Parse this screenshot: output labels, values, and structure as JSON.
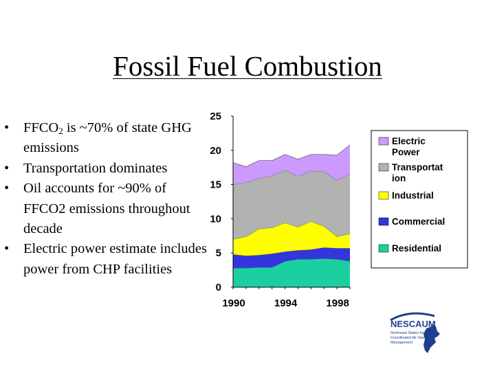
{
  "slide": {
    "title": "Fossil Fuel Combustion",
    "bullet_char": "•",
    "bullets": [
      {
        "pre": "FFCO",
        "sub": "2",
        "post": " is ~70% of state GHG emissions"
      },
      {
        "text": "Transportation dominates"
      },
      {
        "text": "Oil accounts for ~90% of FFCO2 emissions throughout decade"
      },
      {
        "text": "Electric power estimate includes power from CHP facilities"
      }
    ]
  },
  "chart_data": {
    "type": "area",
    "stacked": true,
    "x": [
      1990,
      1991,
      1992,
      1993,
      1994,
      1995,
      1996,
      1997,
      1998,
      1999
    ],
    "x_tick_labels": [
      "1990",
      "1994",
      "1998"
    ],
    "y_tick_labels": [
      "0",
      "5",
      "10",
      "15",
      "20",
      "25"
    ],
    "ylim": [
      0,
      25
    ],
    "xlabel": "",
    "ylabel": "",
    "title": "",
    "series": [
      {
        "name": "Residential",
        "color": "#1ad0a0",
        "values": [
          2.8,
          2.8,
          2.9,
          2.9,
          3.8,
          4.1,
          4.1,
          4.2,
          4.1,
          3.8
        ]
      },
      {
        "name": "Commercial",
        "color": "#3535dd",
        "values": [
          2.0,
          1.8,
          1.8,
          2.0,
          1.4,
          1.3,
          1.4,
          1.6,
          1.6,
          1.9
        ]
      },
      {
        "name": "Industrial",
        "color": "#ffff00",
        "values": [
          2.2,
          2.8,
          3.8,
          3.8,
          4.2,
          3.4,
          4.1,
          3.1,
          1.7,
          2.1
        ]
      },
      {
        "name": "Transportat ion",
        "color": "#b2b2b2",
        "values": [
          8.0,
          7.9,
          7.4,
          7.6,
          7.7,
          7.4,
          7.4,
          8.0,
          8.2,
          8.8
        ]
      },
      {
        "name": "Electric Power",
        "color": "#cc99ff",
        "values": [
          3.2,
          2.3,
          2.6,
          2.2,
          2.3,
          2.5,
          2.4,
          2.5,
          3.7,
          4.2
        ]
      }
    ],
    "legend": {
      "placement": "right",
      "order": [
        "Electric Power",
        "Transportat ion",
        "Industrial",
        "Commercial",
        "Residential"
      ]
    }
  },
  "logo": {
    "name": "NESCAUM",
    "tagline_lines": [
      "Northeast States for",
      "Coordinated Air Use",
      "Management"
    ],
    "color": "#1f3f8f"
  }
}
